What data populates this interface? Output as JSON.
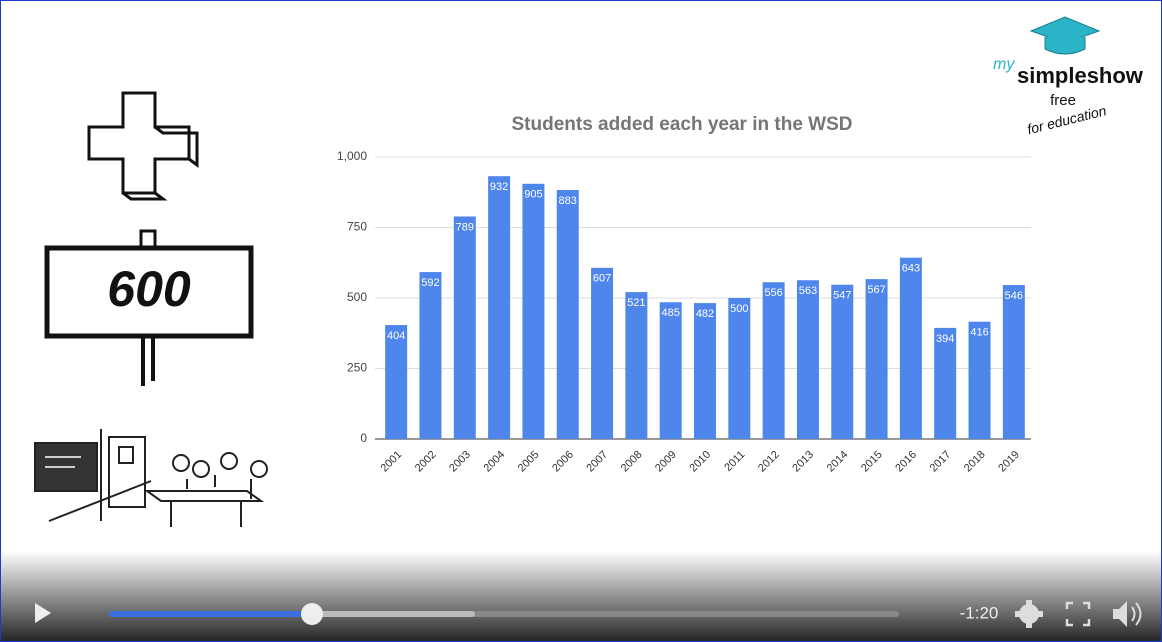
{
  "chart_data": {
    "type": "bar",
    "title": "Students added each year in the WSD",
    "categories": [
      "2001",
      "2002",
      "2003",
      "2004",
      "2005",
      "2006",
      "2007",
      "2008",
      "2009",
      "2010",
      "2011",
      "2012",
      "2013",
      "2014",
      "2015",
      "2016",
      "2017",
      "2018",
      "2019"
    ],
    "values": [
      404,
      592,
      789,
      932,
      905,
      883,
      607,
      521,
      485,
      482,
      500,
      556,
      563,
      547,
      567,
      643,
      394,
      416,
      546
    ],
    "color": "#4f86ec",
    "ylim": [
      0,
      1000
    ],
    "yticks": [
      0,
      250,
      500,
      750,
      {
        "value": 1000,
        "label": "1,000"
      }
    ],
    "grid": true
  },
  "illustration": {
    "sign": "600"
  },
  "logo": {
    "prefix": "my",
    "name": "simpleshow",
    "line1": "free",
    "line2": "for education"
  },
  "player": {
    "time": "-1:20"
  }
}
